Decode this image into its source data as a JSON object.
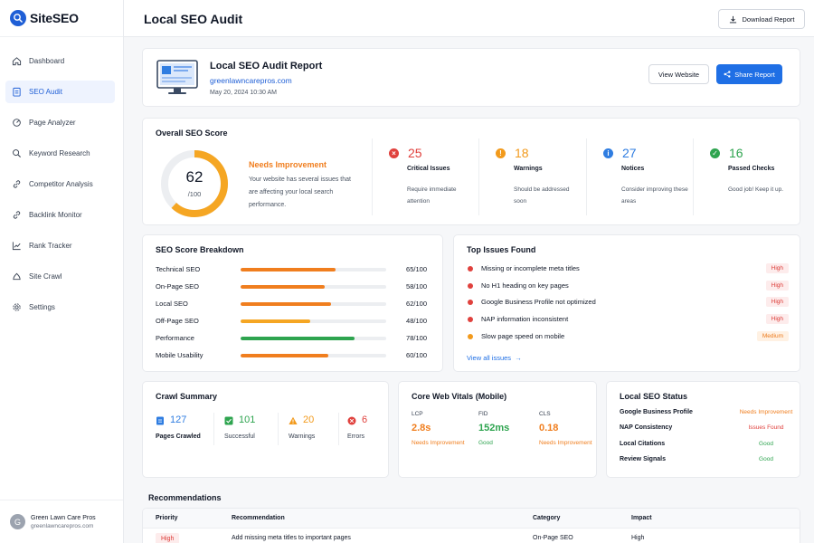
{
  "brand": {
    "name": "SiteSEO"
  },
  "nav": [
    {
      "label": "Dashboard",
      "icon": "home-icon",
      "active": false
    },
    {
      "label": "SEO Audit",
      "icon": "clipboard-icon",
      "active": true
    },
    {
      "label": "Page Analyzer",
      "icon": "page-analyzer-icon",
      "active": false
    },
    {
      "label": "Keyword Research",
      "icon": "search-icon",
      "active": false
    },
    {
      "label": "Competitor Analysis",
      "icon": "link-icon",
      "active": false
    },
    {
      "label": "Backlink Monitor",
      "icon": "chain-icon",
      "active": false
    },
    {
      "label": "Rank Tracker",
      "icon": "chart-icon",
      "active": false
    },
    {
      "label": "Site Crawl",
      "icon": "spider-icon",
      "active": false
    },
    {
      "label": "Settings",
      "icon": "gear-icon",
      "active": false
    }
  ],
  "user": {
    "initial": "G",
    "name": "Green Lawn Care Pros",
    "email": "greenlawncarepros.com"
  },
  "header": {
    "title": "Local SEO Audit",
    "download_label": "Download Report"
  },
  "report": {
    "title": "Local SEO Audit Report",
    "domain": "greenlawncarepros.com",
    "date": "May 20, 2024  10:30 AM",
    "view_label": "View Website",
    "share_label": "Share Report"
  },
  "score": {
    "title": "Overall SEO Score",
    "value": "62",
    "max": "/100",
    "fraction": 0.62,
    "status": "Needs Improvement",
    "description": "Your website has several issues that are affecting your local search performance.",
    "stats": [
      {
        "count": "25",
        "label": "Critical Issues",
        "desc": "Require immediate attention",
        "color": "#e0413d",
        "symbol": "×",
        "icon": "error-icon"
      },
      {
        "count": "18",
        "label": "Warnings",
        "desc": "Should be addressed soon",
        "color": "#f29a1c",
        "symbol": "!",
        "icon": "warning-icon"
      },
      {
        "count": "27",
        "label": "Notices",
        "desc": "Consider improving these areas",
        "color": "#2f7de1",
        "symbol": "i",
        "icon": "info-icon"
      },
      {
        "count": "16",
        "label": "Passed Checks",
        "desc": "Good job! Keep it up.",
        "color": "#2ea44f",
        "symbol": "✓",
        "icon": "check-icon"
      }
    ]
  },
  "breakdown": {
    "title": "SEO Score Breakdown",
    "rows": [
      {
        "label": "Technical SEO",
        "value": "65/100",
        "score": 65,
        "color": "#f07e1e"
      },
      {
        "label": "On-Page SEO",
        "value": "58/100",
        "score": 58,
        "color": "#f07e1e"
      },
      {
        "label": "Local SEO",
        "value": "62/100",
        "score": 62,
        "color": "#f07e1e"
      },
      {
        "label": "Off-Page SEO",
        "value": "48/100",
        "score": 48,
        "color": "#f5a623"
      },
      {
        "label": "Performance",
        "value": "78/100",
        "score": 78,
        "color": "#2ea44f"
      },
      {
        "label": "Mobile Usability",
        "value": "60/100",
        "score": 60,
        "color": "#f07e1e"
      }
    ]
  },
  "issues": {
    "title": "Top Issues Found",
    "rows": [
      {
        "text": "Missing or incomplete meta titles",
        "severity": "High",
        "level": "high",
        "color": "#e0413d"
      },
      {
        "text": "No H1 heading on key pages",
        "severity": "High",
        "level": "high",
        "color": "#e0413d"
      },
      {
        "text": "Google Business Profile not optimized",
        "severity": "High",
        "level": "high",
        "color": "#e0413d"
      },
      {
        "text": "NAP information inconsistent",
        "severity": "High",
        "level": "high",
        "color": "#e0413d"
      },
      {
        "text": "Slow page speed on mobile",
        "severity": "Medium",
        "level": "medium",
        "color": "#f29a1c"
      }
    ],
    "view_all": "View all issues"
  },
  "crawl": {
    "title": "Crawl Summary",
    "items": [
      {
        "count": "127",
        "label": "Pages Crawled",
        "icon": "document-icon",
        "color": "#2f7de1"
      },
      {
        "count": "101",
        "label": "Successful",
        "icon": "check-square-icon",
        "color": "#2ea44f"
      },
      {
        "count": "20",
        "label": "Warnings",
        "icon": "warning-triangle-icon",
        "color": "#f29a1c"
      },
      {
        "count": "6",
        "label": "Errors",
        "icon": "error-icon",
        "color": "#e0413d"
      }
    ]
  },
  "cwv": {
    "title": "Core Web Vitals (Mobile)",
    "metrics": [
      {
        "label": "LCP",
        "value": "2.8s",
        "status": "Needs Improvement",
        "color": "#f07e1e"
      },
      {
        "label": "FID",
        "value": "152ms",
        "status": "Good",
        "color": "#2ea44f"
      },
      {
        "label": "CLS",
        "value": "0.18",
        "status": "Needs Improvement",
        "color": "#f07e1e"
      }
    ]
  },
  "local": {
    "title": "Local SEO Status",
    "rows": [
      {
        "label": "Google Business Profile",
        "status": "Needs Improvement",
        "color": "#f07e1e"
      },
      {
        "label": "NAP Consistency",
        "status": "Issues Found",
        "color": "#e0413d"
      },
      {
        "label": "Local Citations",
        "status": "Good",
        "color": "#2ea44f"
      },
      {
        "label": "Review Signals",
        "status": "Good",
        "color": "#2ea44f"
      }
    ]
  },
  "recommendations": {
    "title": "Recommendations",
    "headers": {
      "priority": "Priority",
      "recommendation": "Recommendation",
      "category": "Category",
      "impact": "Impact"
    },
    "rows": [
      {
        "priority": "High",
        "recommendation": "Add missing meta titles to important pages",
        "category": "On-Page SEO",
        "impact": "High"
      }
    ]
  }
}
